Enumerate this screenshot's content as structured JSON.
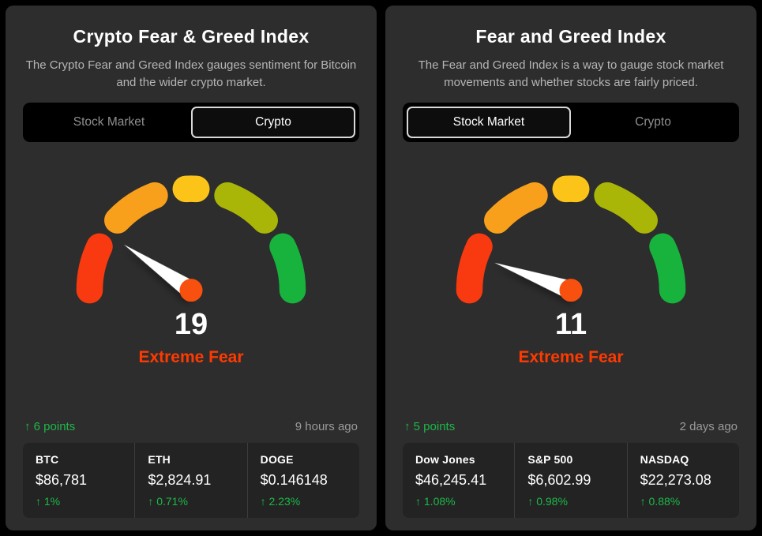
{
  "cards": [
    {
      "id": "crypto",
      "title": "Crypto Fear & Greed Index",
      "description": "The Crypto Fear and Greed Index gauges sentiment for Bitcoin and the wider crypto market.",
      "tabs": [
        {
          "label": "Stock Market",
          "active": false
        },
        {
          "label": "Crypto",
          "active": true
        }
      ],
      "gauge": {
        "value": 19,
        "max": 100,
        "sentiment": "Extreme Fear"
      },
      "change": {
        "arrow": "↑",
        "amount": "6 points"
      },
      "updated": "9 hours ago",
      "tickers": [
        {
          "symbol": "BTC",
          "price": "$86,781",
          "arrow": "↑",
          "change": "1%"
        },
        {
          "symbol": "ETH",
          "price": "$2,824.91",
          "arrow": "↑",
          "change": "0.71%"
        },
        {
          "symbol": "DOGE",
          "price": "$0.146148",
          "arrow": "↑",
          "change": "2.23%"
        }
      ]
    },
    {
      "id": "stock",
      "title": "Fear and Greed Index",
      "description": "The Fear and Greed Index is a way to gauge stock market movements and whether stocks are fairly priced.",
      "tabs": [
        {
          "label": "Stock Market",
          "active": true
        },
        {
          "label": "Crypto",
          "active": false
        }
      ],
      "gauge": {
        "value": 11,
        "max": 100,
        "sentiment": "Extreme Fear"
      },
      "change": {
        "arrow": "↑",
        "amount": "5 points"
      },
      "updated": "2 days ago",
      "tickers": [
        {
          "symbol": "Dow Jones",
          "price": "$46,245.41",
          "arrow": "↑",
          "change": "1.08%"
        },
        {
          "symbol": "S&P 500",
          "price": "$6,602.99",
          "arrow": "↑",
          "change": "0.98%"
        },
        {
          "symbol": "NASDAQ",
          "price": "$22,273.08",
          "arrow": "↑",
          "change": "0.88%"
        }
      ]
    }
  ],
  "colors": {
    "gauge_red": "#f93a10",
    "gauge_orange": "#f8a01b",
    "gauge_yellow": "#fcc418",
    "gauge_lime": "#a9b607",
    "gauge_green": "#18b33c",
    "needle": "#ffffff",
    "needle_pivot": "#f8500f",
    "sentiment_red": "#ff3a00",
    "positive_green": "#1db848"
  }
}
